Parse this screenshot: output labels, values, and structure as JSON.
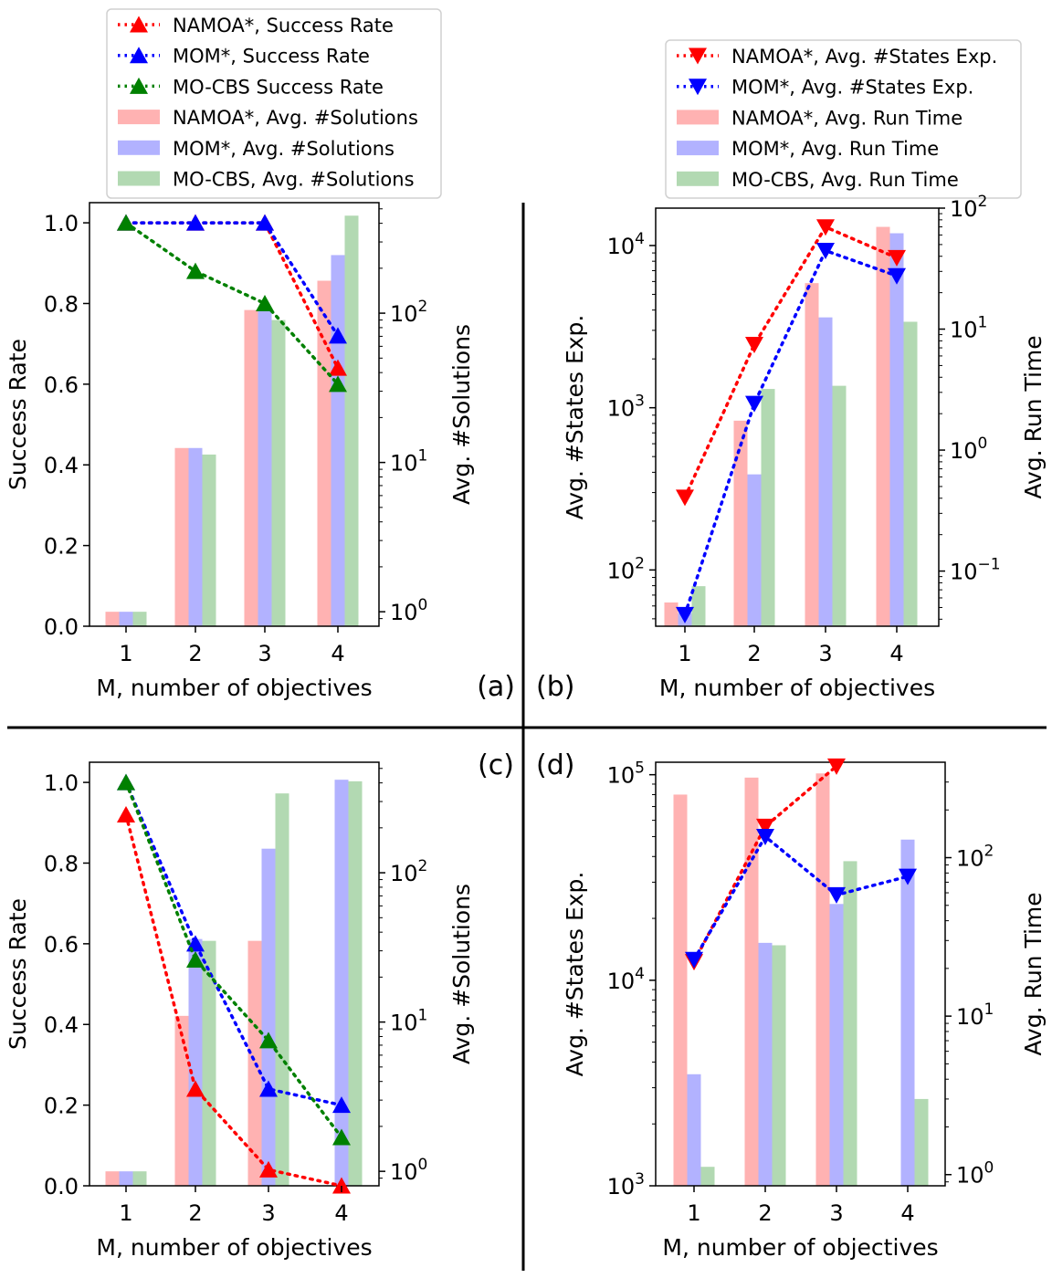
{
  "legends": {
    "left": [
      {
        "label": "NAMOA*, Success Rate",
        "kind": "line",
        "color": "#ff0000",
        "marker": "up"
      },
      {
        "label": "MOM*, Success Rate",
        "kind": "line",
        "color": "#0000ff",
        "marker": "up"
      },
      {
        "label": "MO-CBS Success Rate",
        "kind": "line",
        "color": "#008000",
        "marker": "up"
      },
      {
        "label": "NAMOA*, Avg. #Solutions",
        "kind": "bar",
        "color": "#ff0000"
      },
      {
        "label": "MOM*, Avg. #Solutions",
        "kind": "bar",
        "color": "#0000ff"
      },
      {
        "label": "MO-CBS, Avg. #Solutions",
        "kind": "bar",
        "color": "#008000"
      }
    ],
    "right": [
      {
        "label": "NAMOA*, Avg. #States Exp.",
        "kind": "line",
        "color": "#ff0000",
        "marker": "down"
      },
      {
        "label": "MOM*, Avg. #States Exp.",
        "kind": "line",
        "color": "#0000ff",
        "marker": "down"
      },
      {
        "label": "NAMOA*, Avg. Run Time",
        "kind": "bar",
        "color": "#ff0000"
      },
      {
        "label": "MOM*, Avg. Run Time",
        "kind": "bar",
        "color": "#0000ff"
      },
      {
        "label": "MO-CBS, Avg. Run Time",
        "kind": "bar",
        "color": "#008000"
      }
    ]
  },
  "colors": {
    "namoa": "#ff0000",
    "mom": "#0000ff",
    "mocbs": "#008000",
    "divider": "#000000"
  },
  "chart_data": [
    {
      "id": "a",
      "panel_label": "(a)",
      "type": "bar+line",
      "categories": [
        "1",
        "2",
        "3",
        "4"
      ],
      "xlabel": "M, number of objectives",
      "ylabel_left": "Success Rate",
      "ylabel_right": "Avg. #Solutions",
      "left_scale": "linear",
      "left_ylim": [
        0,
        1.05
      ],
      "left_ticks": [
        0.0,
        0.2,
        0.4,
        0.6,
        0.8,
        1.0
      ],
      "left_tick_labels": [
        "0.0",
        "0.2",
        "0.4",
        "0.6",
        "0.8",
        "1.0"
      ],
      "right_scale": "log",
      "right_ylim": [
        0.8,
        550
      ],
      "right_ticks": [
        1,
        10,
        100
      ],
      "right_tick_labels": [
        "10^0",
        "10^1",
        "10^2"
      ],
      "line_marker": "up",
      "lines": [
        {
          "name": "NAMOA*, Success Rate",
          "color": "#ff0000",
          "values": [
            1.0,
            1.0,
            1.0,
            0.64
          ]
        },
        {
          "name": "MOM*, Success Rate",
          "color": "#0000ff",
          "values": [
            1.0,
            1.0,
            1.0,
            0.72
          ]
        },
        {
          "name": "MO-CBS Success Rate",
          "color": "#008000",
          "values": [
            1.0,
            0.88,
            0.8,
            0.6
          ]
        }
      ],
      "bars": [
        {
          "name": "NAMOA*, Avg. #Solutions",
          "color": "#ff0000",
          "values": [
            1.0,
            12.5,
            105,
            165
          ]
        },
        {
          "name": "MOM*, Avg. #Solutions",
          "color": "#0000ff",
          "values": [
            1.0,
            12.5,
            105,
            245
          ]
        },
        {
          "name": "MO-CBS, Avg. #Solutions",
          "color": "#008000",
          "values": [
            1.0,
            11.3,
            90,
            450
          ]
        }
      ]
    },
    {
      "id": "b",
      "panel_label": "(b)",
      "type": "bar+line",
      "categories": [
        "1",
        "2",
        "3",
        "4"
      ],
      "xlabel": "M, number of objectives",
      "ylabel_left": "Avg. #States Exp.",
      "ylabel_right": "Avg. Run Time",
      "left_scale": "log",
      "left_ylim": [
        45,
        17000
      ],
      "left_ticks": [
        100,
        1000,
        10000
      ],
      "left_tick_labels": [
        "10^2",
        "10^3",
        "10^4"
      ],
      "right_scale": "log",
      "right_ylim": [
        0.035,
        100
      ],
      "right_ticks": [
        0.1,
        1,
        10,
        100
      ],
      "right_tick_labels": [
        "10^-1",
        "10^0",
        "10^1",
        "10^2"
      ],
      "line_marker": "down",
      "lines": [
        {
          "name": "NAMOA*, Avg. #States Exp.",
          "color": "#ff0000",
          "values": [
            280,
            2450,
            13000,
            8400
          ]
        },
        {
          "name": "MOM*, Avg. #States Exp.",
          "color": "#0000ff",
          "values": [
            53,
            1060,
            9300,
            6500
          ]
        }
      ],
      "bars": [
        {
          "name": "NAMOA*, Avg. Run Time",
          "color": "#ff0000",
          "values": [
            0.055,
            1.75,
            24,
            70
          ]
        },
        {
          "name": "MOM*, Avg. Run Time",
          "color": "#0000ff",
          "values": [
            0.045,
            0.63,
            12.5,
            62
          ]
        },
        {
          "name": "MO-CBS, Avg. Run Time",
          "color": "#008000",
          "values": [
            0.075,
            3.2,
            3.4,
            11.5
          ]
        }
      ]
    },
    {
      "id": "c",
      "panel_label": "(c)",
      "type": "bar+line",
      "categories": [
        "1",
        "2",
        "3",
        "4"
      ],
      "xlabel": "M, number of objectives",
      "ylabel_left": "Success Rate",
      "ylabel_right": "Avg. #Solutions",
      "left_scale": "linear",
      "left_ylim": [
        0,
        1.05
      ],
      "left_ticks": [
        0.0,
        0.2,
        0.4,
        0.6,
        0.8,
        1.0
      ],
      "left_tick_labels": [
        "0.0",
        "0.2",
        "0.4",
        "0.6",
        "0.8",
        "1.0"
      ],
      "right_scale": "log",
      "right_ylim": [
        0.8,
        550
      ],
      "right_ticks": [
        1,
        10,
        100
      ],
      "right_tick_labels": [
        "10^0",
        "10^1",
        "10^2"
      ],
      "line_marker": "up",
      "lines": [
        {
          "name": "NAMOA*, Success Rate",
          "color": "#ff0000",
          "values": [
            0.92,
            0.24,
            0.04,
            0.0
          ]
        },
        {
          "name": "MOM*, Success Rate",
          "color": "#0000ff",
          "values": [
            1.0,
            0.6,
            0.24,
            0.2
          ]
        },
        {
          "name": "MO-CBS Success Rate",
          "color": "#008000",
          "values": [
            1.0,
            0.56,
            0.36,
            0.12
          ]
        }
      ],
      "bars": [
        {
          "name": "NAMOA*, Avg. #Solutions",
          "color": "#ff0000",
          "values": [
            1.0,
            11.0,
            35,
            null
          ]
        },
        {
          "name": "MOM*, Avg. #Solutions",
          "color": "#0000ff",
          "values": [
            1.0,
            36,
            145,
            420
          ]
        },
        {
          "name": "MO-CBS, Avg. #Solutions",
          "color": "#008000",
          "values": [
            1.0,
            35,
            340,
            410
          ]
        }
      ]
    },
    {
      "id": "d",
      "panel_label": "(d)",
      "type": "bar+line",
      "categories": [
        "1",
        "2",
        "3",
        "4"
      ],
      "xlabel": "M, number of objectives",
      "ylabel_left": "Avg. #States Exp.",
      "ylabel_right": "Avg. Run Time",
      "left_scale": "log",
      "left_ylim": [
        1000,
        115000
      ],
      "left_ticks": [
        1000,
        10000,
        100000
      ],
      "left_tick_labels": [
        "10^3",
        "10^4",
        "10^5"
      ],
      "right_scale": "log",
      "right_ylim": [
        0.85,
        400
      ],
      "right_ticks": [
        1,
        10,
        100
      ],
      "right_tick_labels": [
        "10^0",
        "10^1",
        "10^2"
      ],
      "line_marker": "down",
      "lines": [
        {
          "name": "NAMOA*, Avg. #States Exp.",
          "color": "#ff0000",
          "values": [
            12300,
            56000,
            110000,
            null
          ]
        },
        {
          "name": "MOM*, Avg. #States Exp.",
          "color": "#0000ff",
          "values": [
            12600,
            50000,
            26000,
            32000
          ]
        }
      ],
      "bars": [
        {
          "name": "NAMOA*, Avg. Run Time",
          "color": "#ff0000",
          "values": [
            250,
            320,
            340,
            null
          ]
        },
        {
          "name": "MOM*, Avg. Run Time",
          "color": "#0000ff",
          "values": [
            4.3,
            29,
            51,
            130
          ]
        },
        {
          "name": "MO-CBS, Avg. Run Time",
          "color": "#008000",
          "values": [
            1.12,
            28,
            95,
            3.0
          ]
        }
      ]
    }
  ]
}
